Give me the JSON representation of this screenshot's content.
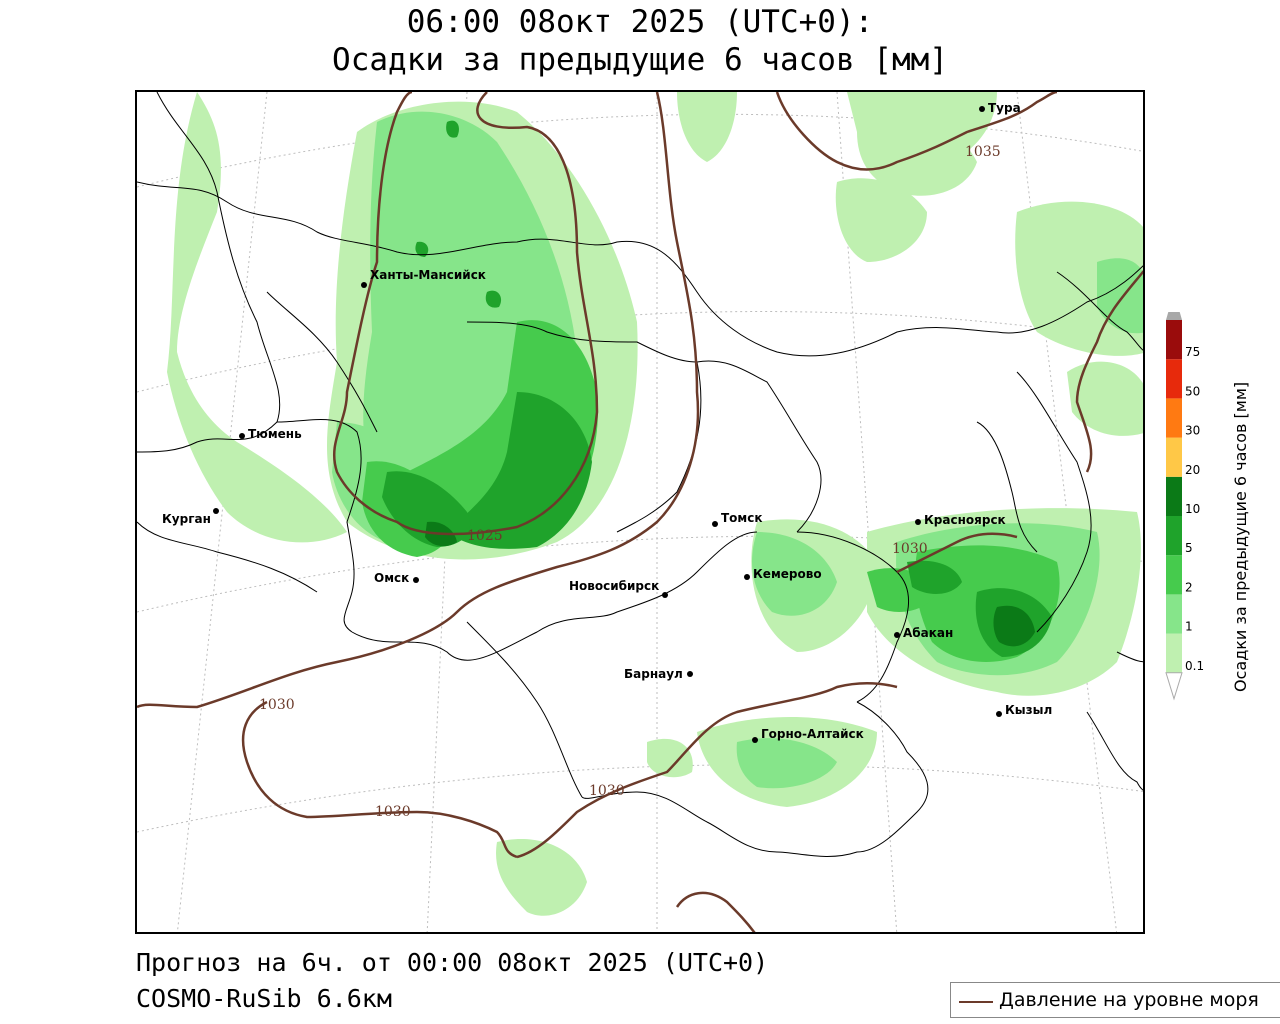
{
  "header": {
    "title_line1": "06:00 08окт 2025 (UTC+0):",
    "title_line2": "Осадки за предыдущие 6 часов [мм]"
  },
  "footer": {
    "forecast": "Прогноз на 6ч. от 00:00 08окт 2025 (UTC+0)",
    "model": "COSMO-RuSib 6.6км"
  },
  "legend": {
    "pressure_label": "Давление на уровне моря",
    "pressure_color": "#6b3a2a"
  },
  "colorbar": {
    "label": "Осадки за предыдущие 6 часов [мм]",
    "ticks": [
      "0.1",
      "1",
      "2",
      "5",
      "10",
      "20",
      "30",
      "50",
      "75"
    ],
    "colors": [
      "#bff0b0",
      "#86e58a",
      "#46cb4d",
      "#1fa32b",
      "#0b7a17",
      "#ffc847",
      "#ff7a12",
      "#e72a0c",
      "#9a0c0c",
      "#a8a8a8"
    ]
  },
  "map": {
    "cities": [
      {
        "name": "Тура"
      },
      {
        "name": "Ханты-Мансийск"
      },
      {
        "name": "Тюмень"
      },
      {
        "name": "Курган"
      },
      {
        "name": "Омск"
      },
      {
        "name": "Томск"
      },
      {
        "name": "Красноярск"
      },
      {
        "name": "Кемерово"
      },
      {
        "name": "Новосибирск"
      },
      {
        "name": "Абакан"
      },
      {
        "name": "Барнаул"
      },
      {
        "name": "Кызыл"
      },
      {
        "name": "Горно-Алтайск"
      }
    ],
    "isobar_labels": [
      "1035",
      "1025",
      "1030",
      "1030",
      "1030",
      "1030"
    ]
  }
}
